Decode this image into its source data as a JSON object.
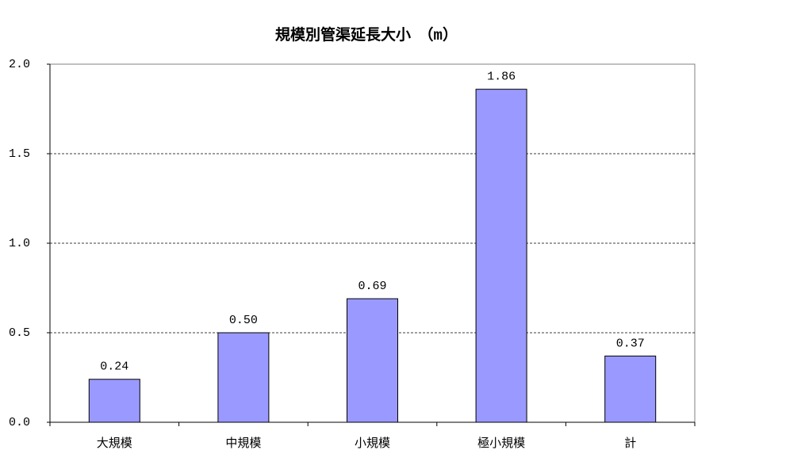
{
  "chart_data": {
    "type": "bar",
    "title": "規模別管渠延長大小　（m）",
    "categories": [
      "大規模",
      "中規模",
      "小規模",
      "極小規模",
      "計"
    ],
    "values": [
      0.24,
      0.5,
      0.69,
      1.86,
      0.37
    ],
    "value_labels": [
      "0.24",
      "0.50",
      "0.69",
      "1.86",
      "0.37"
    ],
    "color": "#9999ff",
    "ylim": [
      0,
      2
    ],
    "yticks": [
      {
        "value": 0,
        "label": "0.0"
      },
      {
        "value": 0.5,
        "label": "0.5"
      },
      {
        "value": 1,
        "label": "1.0"
      },
      {
        "value": 1.5,
        "label": "1.5"
      },
      {
        "value": 2,
        "label": "2.0"
      }
    ],
    "grid": true
  }
}
